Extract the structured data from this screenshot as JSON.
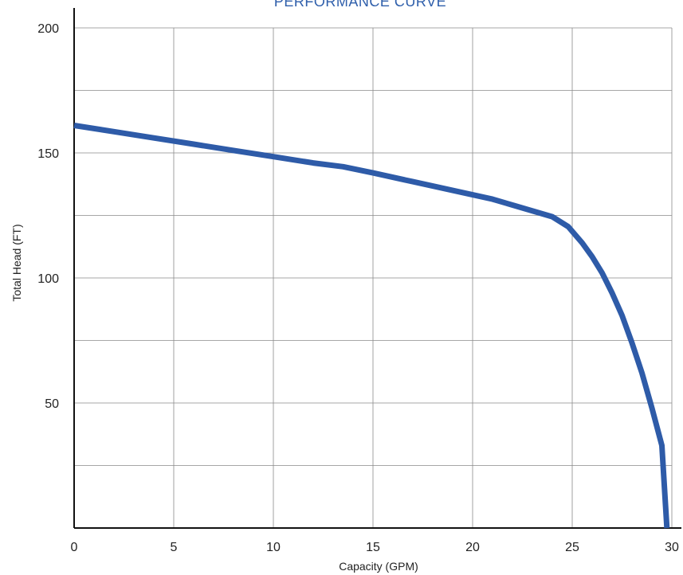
{
  "chart_data": {
    "type": "line",
    "title": "PERFORMANCE CURVE",
    "xlabel": "Capacity (GPM)",
    "ylabel": "Total Head (FT)",
    "xlim": [
      0,
      30
    ],
    "ylim": [
      0,
      200
    ],
    "x_ticks": [
      0,
      5,
      10,
      15,
      20,
      25,
      30
    ],
    "x_tick_labels": [
      "0",
      "5",
      "10",
      "15",
      "20",
      "25",
      "30"
    ],
    "y_ticks": [
      50,
      100,
      150,
      200
    ],
    "y_tick_labels": [
      "50",
      "100",
      "150",
      "200"
    ],
    "grid": true,
    "series": [
      {
        "x": [
          0,
          2,
          4,
          6,
          8,
          10,
          12,
          13.5,
          15,
          17,
          19,
          21,
          22.5,
          24,
          24.8,
          25.5,
          26,
          26.5,
          27,
          27.5,
          28,
          28.5,
          29,
          29.5,
          29.75
        ],
        "values": [
          161,
          158.5,
          156,
          153.5,
          151,
          148.5,
          146,
          144.5,
          142,
          138.5,
          135,
          131.5,
          128,
          124.5,
          120.5,
          114,
          108.5,
          102,
          94,
          85,
          74,
          62,
          48,
          33,
          0
        ],
        "color": "#2e5ba8"
      }
    ]
  }
}
